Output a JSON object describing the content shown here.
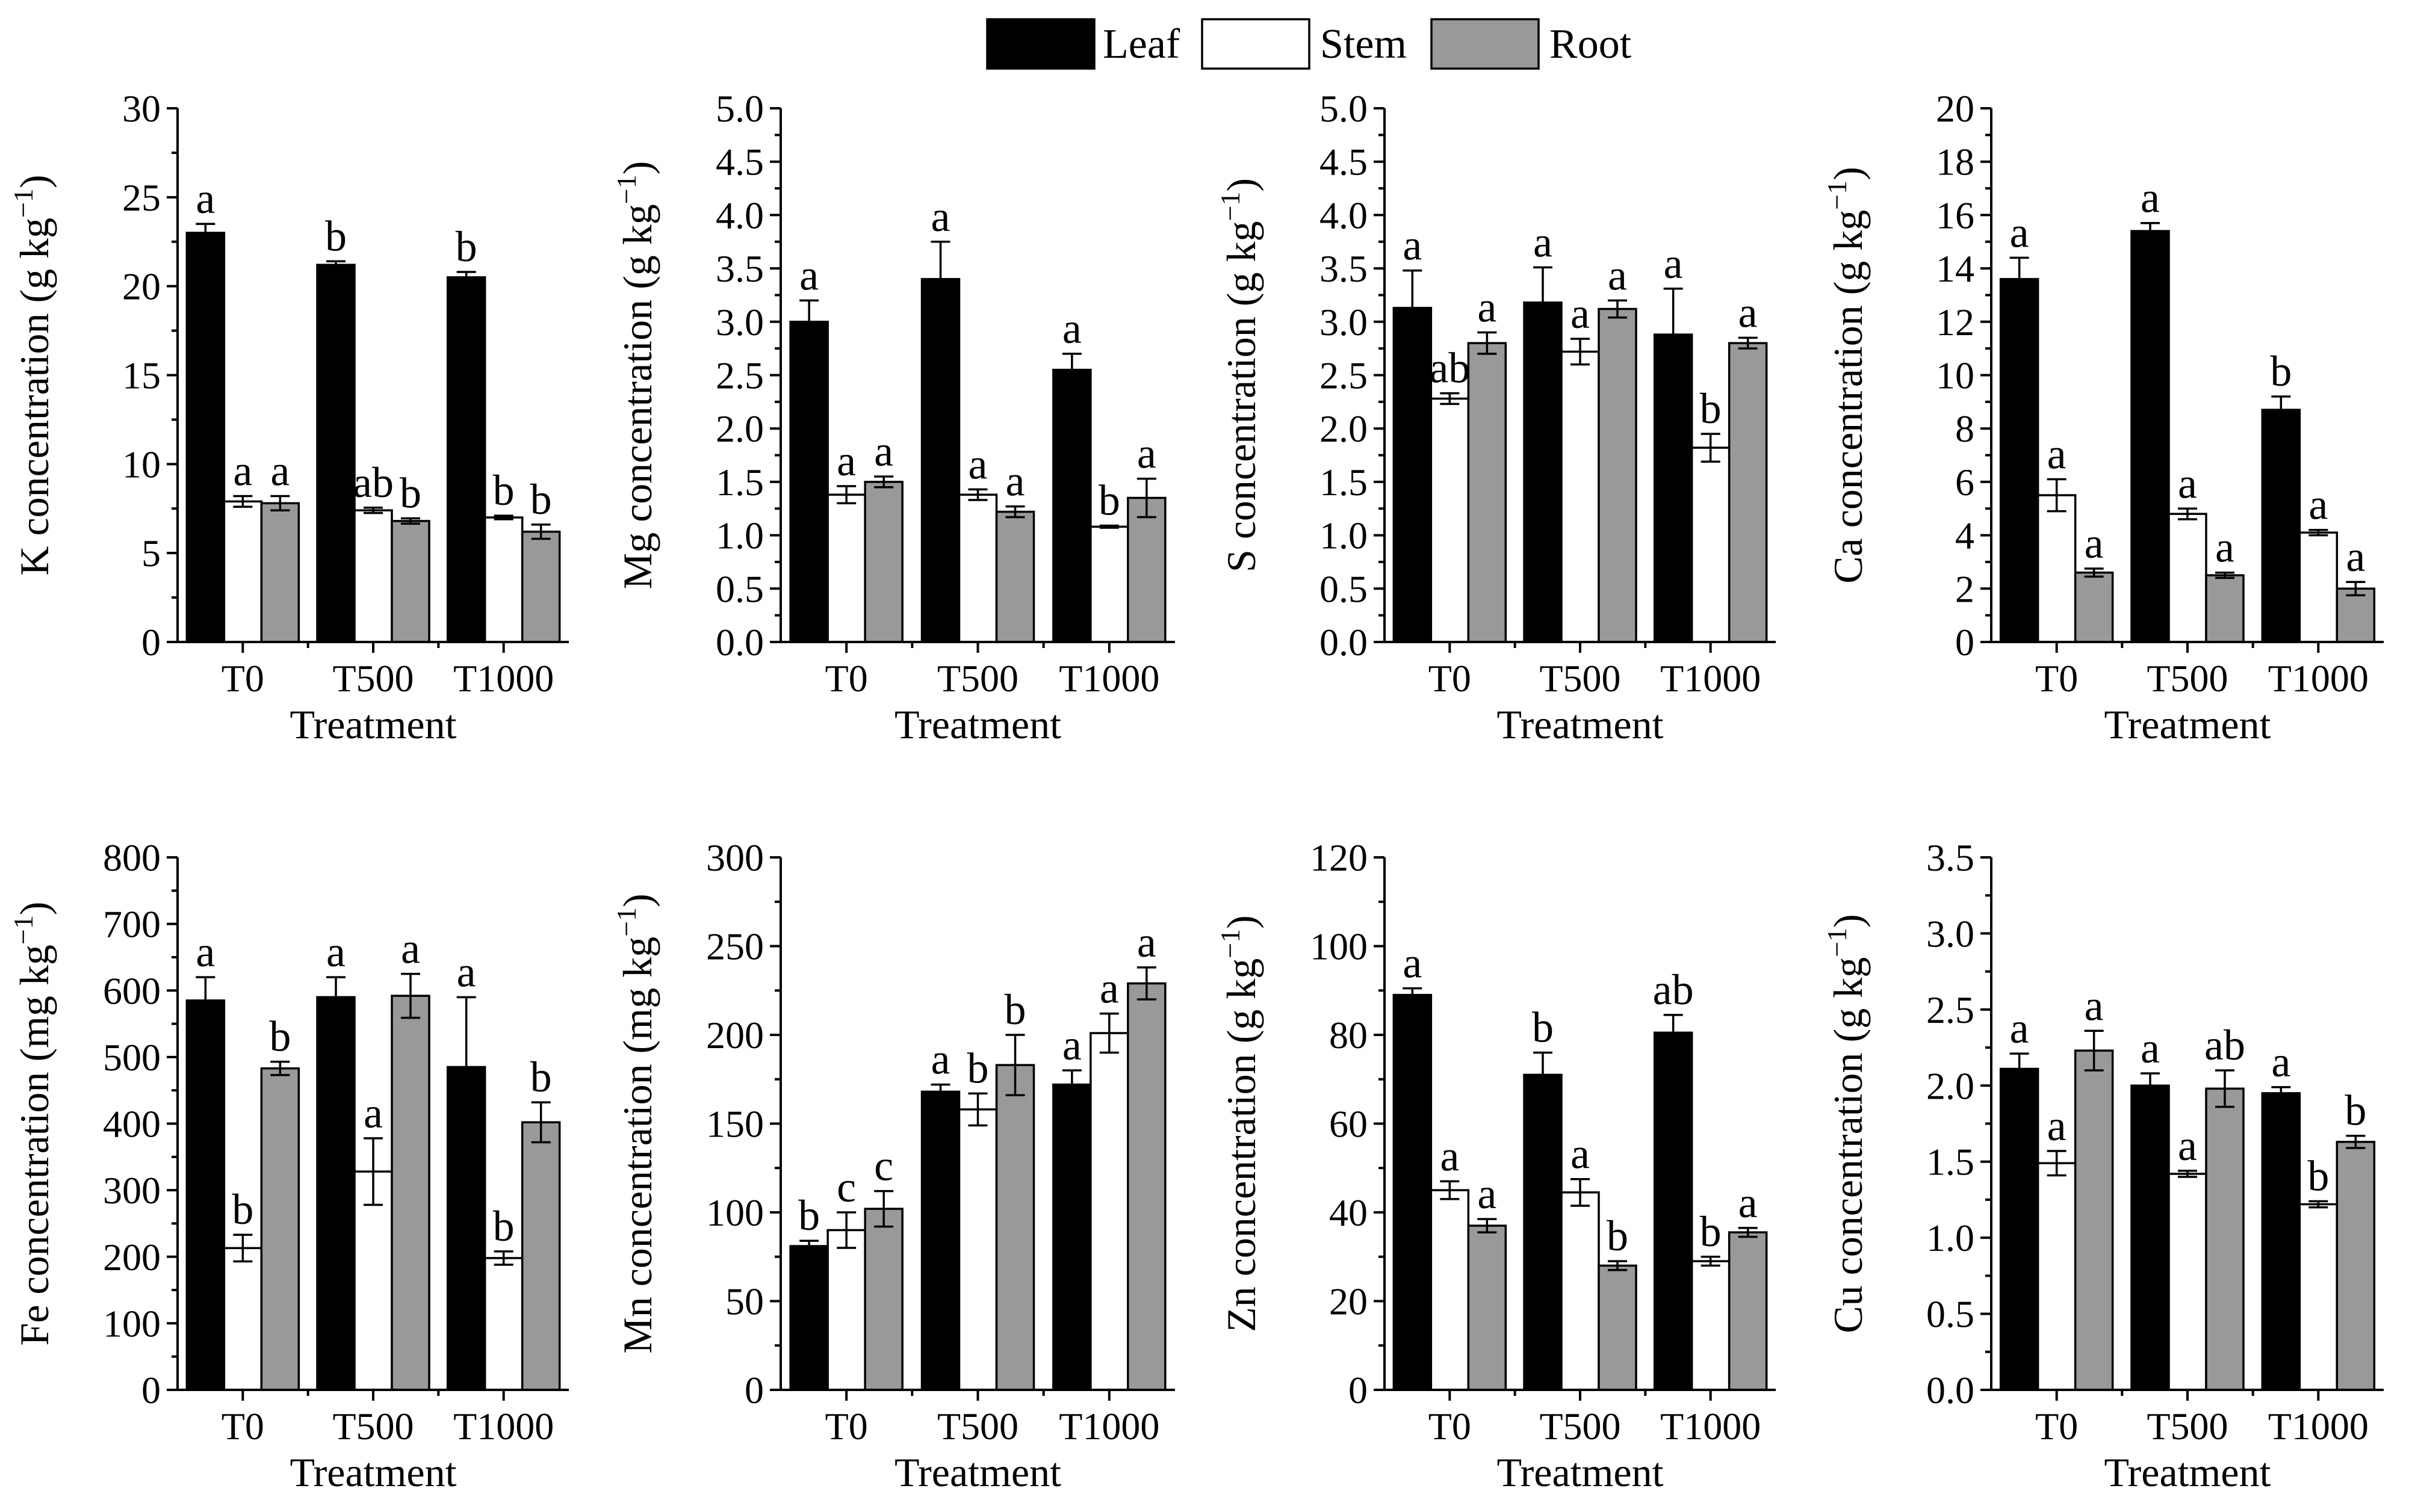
{
  "legend": [
    {
      "name": "Leaf",
      "color": "#000000"
    },
    {
      "name": "Stem",
      "color": "#ffffff"
    },
    {
      "name": "Root",
      "color": "#999999"
    }
  ],
  "chart_data": [
    {
      "type": "bar",
      "id": "K",
      "categories": [
        "T0",
        "T500",
        "T1000"
      ],
      "xlabel": "Treatment",
      "ylabel_main": "K concentration (g kg",
      "ylabel_sup": "−1",
      "ylabel_end": ")",
      "ylim": [
        0,
        30
      ],
      "yticks": [
        0,
        5,
        10,
        15,
        20,
        25,
        30
      ],
      "ytick_labels": [
        "0",
        "5",
        "10",
        "15",
        "20",
        "25",
        "30"
      ],
      "series": [
        {
          "name": "Leaf",
          "values": [
            23.0,
            21.2,
            20.5
          ],
          "errors": [
            0.5,
            0.2,
            0.3
          ],
          "letters": [
            "a",
            "b",
            "b"
          ]
        },
        {
          "name": "Stem",
          "values": [
            7.9,
            7.4,
            7.0
          ],
          "errors": [
            0.3,
            0.15,
            0.1
          ],
          "letters": [
            "a",
            "ab",
            "b"
          ]
        },
        {
          "name": "Root",
          "values": [
            7.8,
            6.8,
            6.2
          ],
          "errors": [
            0.4,
            0.15,
            0.4
          ],
          "letters": [
            "a",
            "b",
            "b"
          ]
        }
      ]
    },
    {
      "type": "bar",
      "id": "Mg",
      "categories": [
        "T0",
        "T500",
        "T1000"
      ],
      "xlabel": "Treatment",
      "ylabel_main": "Mg concentration (g kg",
      "ylabel_sup": "−1",
      "ylabel_end": ")",
      "ylim": [
        0,
        5
      ],
      "yticks": [
        0,
        0.5,
        1,
        1.5,
        2,
        2.5,
        3,
        3.5,
        4,
        4.5,
        5
      ],
      "ytick_labels": [
        "0.0",
        "0.5",
        "1.0",
        "1.5",
        "2.0",
        "2.5",
        "3.0",
        "3.5",
        "4.0",
        "4.5",
        "5.0"
      ],
      "series": [
        {
          "name": "Leaf",
          "values": [
            3.0,
            3.4,
            2.55
          ],
          "errors": [
            0.2,
            0.35,
            0.15
          ],
          "letters": [
            "a",
            "a",
            "a"
          ]
        },
        {
          "name": "Stem",
          "values": [
            1.38,
            1.38,
            1.08
          ],
          "errors": [
            0.08,
            0.05,
            0.01
          ],
          "letters": [
            "a",
            "a",
            "b"
          ]
        },
        {
          "name": "Root",
          "values": [
            1.5,
            1.22,
            1.35
          ],
          "errors": [
            0.05,
            0.05,
            0.18
          ],
          "letters": [
            "a",
            "a",
            "a"
          ]
        }
      ]
    },
    {
      "type": "bar",
      "id": "S",
      "categories": [
        "T0",
        "T500",
        "T1000"
      ],
      "xlabel": "Treatment",
      "ylabel_main": "S concentration (g kg",
      "ylabel_sup": "−1",
      "ylabel_end": ")",
      "ylim": [
        0,
        5
      ],
      "yticks": [
        0,
        0.5,
        1,
        1.5,
        2,
        2.5,
        3,
        3.5,
        4,
        4.5,
        5
      ],
      "ytick_labels": [
        "0.0",
        "0.5",
        "1.0",
        "1.5",
        "2.0",
        "2.5",
        "3.0",
        "3.5",
        "4.0",
        "4.5",
        "5.0"
      ],
      "series": [
        {
          "name": "Leaf",
          "values": [
            3.13,
            3.18,
            2.88
          ],
          "errors": [
            0.35,
            0.33,
            0.43
          ],
          "letters": [
            "a",
            "a",
            "a"
          ]
        },
        {
          "name": "Stem",
          "values": [
            2.28,
            2.72,
            1.82
          ],
          "errors": [
            0.05,
            0.12,
            0.13
          ],
          "letters": [
            "ab",
            "a",
            "b"
          ]
        },
        {
          "name": "Root",
          "values": [
            2.8,
            3.12,
            2.8
          ],
          "errors": [
            0.1,
            0.08,
            0.05
          ],
          "letters": [
            "a",
            "a",
            "a"
          ]
        }
      ]
    },
    {
      "type": "bar",
      "id": "Ca",
      "categories": [
        "T0",
        "T500",
        "T1000"
      ],
      "xlabel": "Treatment",
      "ylabel_main": "Ca concentration (g kg",
      "ylabel_sup": "−1",
      "ylabel_end": ")",
      "ylim": [
        0,
        20
      ],
      "yticks": [
        0,
        2,
        4,
        6,
        8,
        10,
        12,
        14,
        16,
        18,
        20
      ],
      "ytick_labels": [
        "0",
        "2",
        "4",
        "6",
        "8",
        "10",
        "12",
        "14",
        "16",
        "18",
        "20"
      ],
      "series": [
        {
          "name": "Leaf",
          "values": [
            13.6,
            15.4,
            8.7
          ],
          "errors": [
            0.8,
            0.3,
            0.5
          ],
          "letters": [
            "a",
            "a",
            "b"
          ]
        },
        {
          "name": "Stem",
          "values": [
            5.5,
            4.8,
            4.1
          ],
          "errors": [
            0.6,
            0.2,
            0.1
          ],
          "letters": [
            "a",
            "a",
            "a"
          ]
        },
        {
          "name": "Root",
          "values": [
            2.6,
            2.5,
            2.0
          ],
          "errors": [
            0.15,
            0.1,
            0.25
          ],
          "letters": [
            "a",
            "a",
            "a"
          ]
        }
      ]
    },
    {
      "type": "bar",
      "id": "Fe",
      "categories": [
        "T0",
        "T500",
        "T1000"
      ],
      "xlabel": "Treatment",
      "ylabel_main": "Fe concentration (mg kg",
      "ylabel_sup": "−1",
      "ylabel_end": ")",
      "ylim": [
        0,
        800
      ],
      "yticks": [
        0,
        100,
        200,
        300,
        400,
        500,
        600,
        700,
        800
      ],
      "ytick_labels": [
        "0",
        "100",
        "200",
        "300",
        "400",
        "500",
        "600",
        "700",
        "800"
      ],
      "series": [
        {
          "name": "Leaf",
          "values": [
            585,
            590,
            485
          ],
          "errors": [
            35,
            30,
            105
          ],
          "letters": [
            "a",
            "a",
            "a"
          ]
        },
        {
          "name": "Stem",
          "values": [
            213,
            328,
            198
          ],
          "errors": [
            20,
            50,
            10
          ],
          "letters": [
            "b",
            "a",
            "b"
          ]
        },
        {
          "name": "Root",
          "values": [
            483,
            592,
            402
          ],
          "errors": [
            10,
            33,
            30
          ],
          "letters": [
            "b",
            "a",
            "b"
          ]
        }
      ]
    },
    {
      "type": "bar",
      "id": "Mn",
      "categories": [
        "T0",
        "T500",
        "T1000"
      ],
      "xlabel": "Treatment",
      "ylabel_main": "Mn concentration (mg kg",
      "ylabel_sup": "−1",
      "ylabel_end": ")",
      "ylim": [
        0,
        300
      ],
      "yticks": [
        0,
        50,
        100,
        150,
        200,
        250,
        300
      ],
      "ytick_labels": [
        "0",
        "50",
        "100",
        "150",
        "200",
        "250",
        "300"
      ],
      "series": [
        {
          "name": "Leaf",
          "values": [
            81,
            168,
            172
          ],
          "errors": [
            3,
            4,
            8
          ],
          "letters": [
            "b",
            "a",
            "a"
          ]
        },
        {
          "name": "Stem",
          "values": [
            90,
            158,
            201
          ],
          "errors": [
            10,
            9,
            11
          ],
          "letters": [
            "c",
            "b",
            "a"
          ]
        },
        {
          "name": "Root",
          "values": [
            102,
            183,
            229
          ],
          "errors": [
            10,
            17,
            9
          ],
          "letters": [
            "c",
            "b",
            "a"
          ]
        }
      ]
    },
    {
      "type": "bar",
      "id": "Zn",
      "categories": [
        "T0",
        "T500",
        "T1000"
      ],
      "xlabel": "Treatment",
      "ylabel_main": "Zn concentration (g kg",
      "ylabel_sup": "−1",
      "ylabel_end": ")",
      "ylim": [
        0,
        120
      ],
      "yticks": [
        0,
        20,
        40,
        60,
        80,
        100,
        120
      ],
      "ytick_labels": [
        "0",
        "20",
        "40",
        "60",
        "80",
        "100",
        "120"
      ],
      "series": [
        {
          "name": "Leaf",
          "values": [
            89,
            71,
            80.5
          ],
          "errors": [
            1.5,
            5,
            4
          ],
          "letters": [
            "a",
            "b",
            "ab"
          ]
        },
        {
          "name": "Stem",
          "values": [
            45,
            44.5,
            29
          ],
          "errors": [
            2,
            3,
            1
          ],
          "letters": [
            "a",
            "a",
            "b"
          ]
        },
        {
          "name": "Root",
          "values": [
            37,
            28,
            35.5
          ],
          "errors": [
            1.5,
            1,
            1
          ],
          "letters": [
            "a",
            "b",
            "a"
          ]
        }
      ]
    },
    {
      "type": "bar",
      "id": "Cu",
      "categories": [
        "T0",
        "T500",
        "T1000"
      ],
      "xlabel": "Treatment",
      "ylabel_main": "Cu concentration (g kg",
      "ylabel_sup": "−1",
      "ylabel_end": ")",
      "ylim": [
        0,
        3.5
      ],
      "yticks": [
        0,
        0.5,
        1,
        1.5,
        2,
        2.5,
        3,
        3.5
      ],
      "ytick_labels": [
        "0.0",
        "0.5",
        "1.0",
        "1.5",
        "2.0",
        "2.5",
        "3.0",
        "3.5"
      ],
      "series": [
        {
          "name": "Leaf",
          "values": [
            2.11,
            2.0,
            1.95
          ],
          "errors": [
            0.1,
            0.08,
            0.04
          ],
          "letters": [
            "a",
            "a",
            "a"
          ]
        },
        {
          "name": "Stem",
          "values": [
            1.49,
            1.42,
            1.22
          ],
          "errors": [
            0.08,
            0.02,
            0.02
          ],
          "letters": [
            "a",
            "a",
            "b"
          ]
        },
        {
          "name": "Root",
          "values": [
            2.23,
            1.98,
            1.63
          ],
          "errors": [
            0.13,
            0.12,
            0.04
          ],
          "letters": [
            "a",
            "ab",
            "b"
          ]
        }
      ]
    }
  ]
}
